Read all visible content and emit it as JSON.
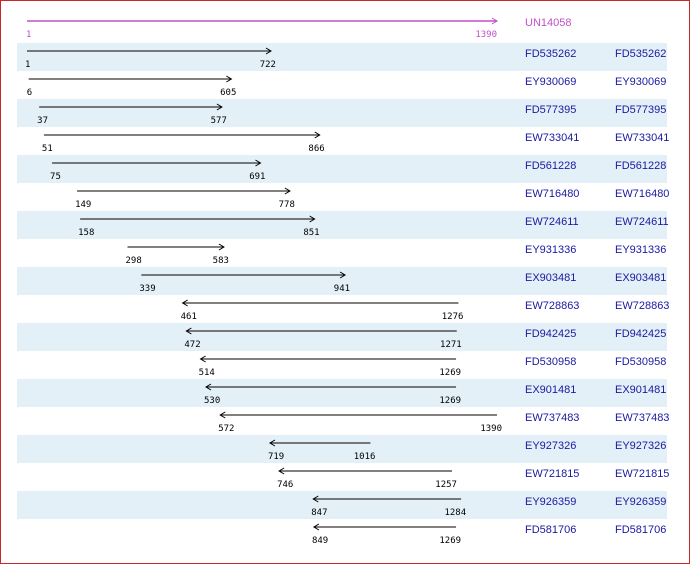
{
  "reference": {
    "name": "UN14058",
    "start": 1,
    "end": 1390,
    "color": "#c050c8"
  },
  "colors": {
    "row_alt_bg": "#e3f0f7",
    "line": "#000000",
    "link": "#1a1aa0",
    "border": "#c82828"
  },
  "alignments": [
    {
      "name": "FD535262",
      "link": "FD535262",
      "start": 1,
      "end": 722,
      "strand": "forward"
    },
    {
      "name": "EY930069",
      "link": "EY930069",
      "start": 6,
      "end": 605,
      "strand": "forward"
    },
    {
      "name": "FD577395",
      "link": "FD577395",
      "start": 37,
      "end": 577,
      "strand": "forward"
    },
    {
      "name": "EW733041",
      "link": "EW733041",
      "start": 51,
      "end": 866,
      "strand": "forward"
    },
    {
      "name": "FD561228",
      "link": "FD561228",
      "start": 75,
      "end": 691,
      "strand": "forward"
    },
    {
      "name": "EW716480",
      "link": "EW716480",
      "start": 149,
      "end": 778,
      "strand": "forward"
    },
    {
      "name": "EW724611",
      "link": "EW724611",
      "start": 158,
      "end": 851,
      "strand": "forward"
    },
    {
      "name": "EY931336",
      "link": "EY931336",
      "start": 298,
      "end": 583,
      "strand": "forward"
    },
    {
      "name": "EX903481",
      "link": "EX903481",
      "start": 339,
      "end": 941,
      "strand": "forward"
    },
    {
      "name": "EW728863",
      "link": "EW728863",
      "start": 461,
      "end": 1276,
      "strand": "reverse"
    },
    {
      "name": "FD942425",
      "link": "FD942425",
      "start": 472,
      "end": 1271,
      "strand": "reverse"
    },
    {
      "name": "FD530958",
      "link": "FD530958",
      "start": 514,
      "end": 1269,
      "strand": "reverse"
    },
    {
      "name": "EX901481",
      "link": "EX901481",
      "start": 530,
      "end": 1269,
      "strand": "reverse"
    },
    {
      "name": "EW737483",
      "link": "EW737483",
      "start": 572,
      "end": 1390,
      "strand": "reverse"
    },
    {
      "name": "EY927326",
      "link": "EY927326",
      "start": 719,
      "end": 1016,
      "strand": "reverse"
    },
    {
      "name": "EW721815",
      "link": "EW721815",
      "start": 746,
      "end": 1257,
      "strand": "reverse"
    },
    {
      "name": "EY926359",
      "link": "EY926359",
      "start": 847,
      "end": 1284,
      "strand": "reverse"
    },
    {
      "name": "FD581706",
      "link": "FD581706",
      "start": 849,
      "end": 1269,
      "strand": "reverse"
    }
  ]
}
